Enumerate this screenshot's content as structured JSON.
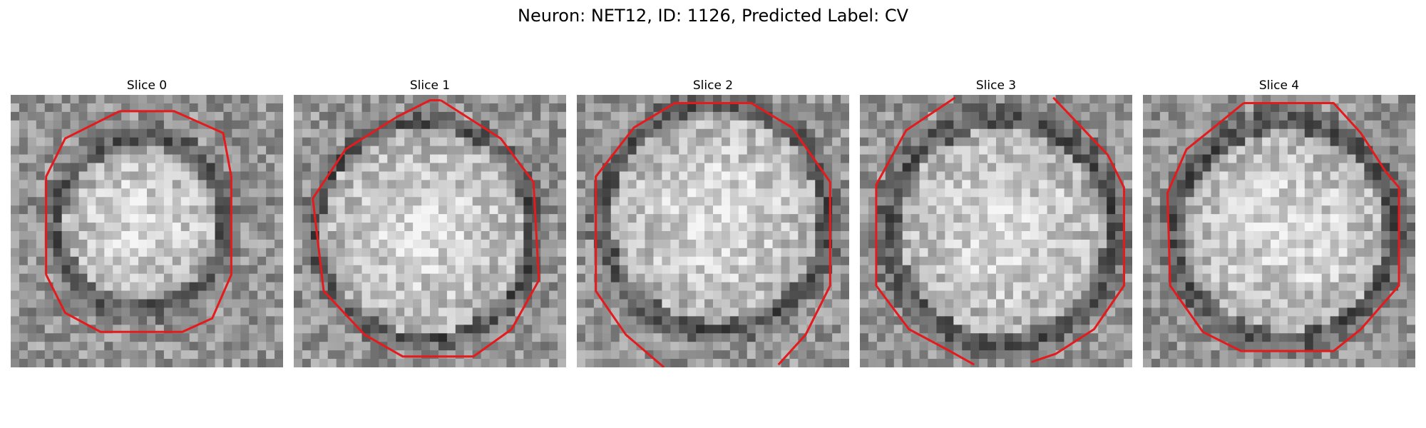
{
  "figure": {
    "title": "Neuron: NET12, ID: 1126, Predicted Label: CV"
  },
  "panels": [
    {
      "title": "Slice 0"
    },
    {
      "title": "Slice 1"
    },
    {
      "title": "Slice 2"
    },
    {
      "title": "Slice 3"
    },
    {
      "title": "Slice 4"
    }
  ],
  "colors": {
    "background": "#ffffff",
    "contour": "#e41a1c"
  }
}
